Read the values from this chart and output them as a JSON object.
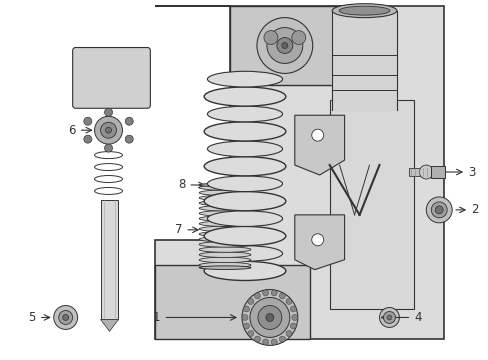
{
  "bg_color": "#ffffff",
  "panel_bg": "#dcdcdc",
  "line_color": "#333333",
  "font_size": 8.5,
  "fig_width": 4.89,
  "fig_height": 3.6,
  "dpi": 100
}
